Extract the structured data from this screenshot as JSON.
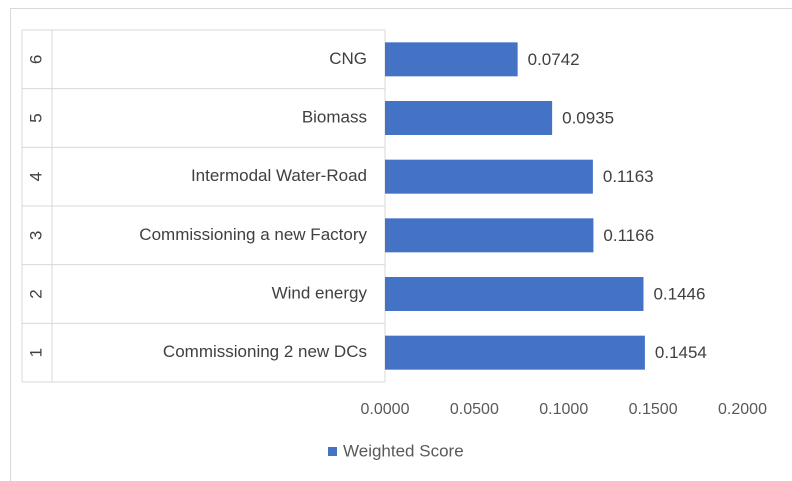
{
  "chart_data": {
    "type": "bar",
    "orientation": "horizontal",
    "ranks": [
      "1",
      "2",
      "3",
      "4",
      "5",
      "6"
    ],
    "categories": [
      "Commissioning 2 new DCs",
      "Wind energy",
      "Commissioning a new Factory",
      "Intermodal Water-Road",
      "Biomass",
      "CNG"
    ],
    "series": [
      {
        "name": "Weighted Score",
        "color": "#4472c4",
        "values": [
          0.1454,
          0.1446,
          0.1166,
          0.1163,
          0.0935,
          0.0742
        ]
      }
    ],
    "xlim": [
      0,
      0.2
    ],
    "xticks": [
      {
        "value": 0,
        "label": "0.0000"
      },
      {
        "value": 0.05,
        "label": "0.0500"
      },
      {
        "value": 0.1,
        "label": "0.1000"
      },
      {
        "value": 0.15,
        "label": "0.1500"
      },
      {
        "value": 0.2,
        "label": "0.2000"
      }
    ],
    "legend": "bottom"
  }
}
